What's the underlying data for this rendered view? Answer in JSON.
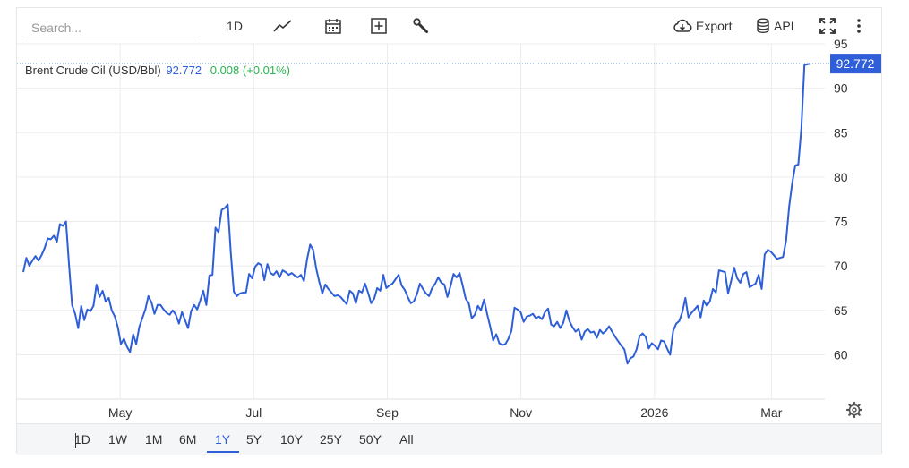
{
  "search": {
    "placeholder": "Search..."
  },
  "toolbar": {
    "interval_label": "1D",
    "export_label": "Export",
    "api_label": "API"
  },
  "header": {
    "instrument": "Brent Crude Oil (USD/Bbl)",
    "price": "92.772",
    "change": "0.008 (+0.01%)"
  },
  "ranges": [
    {
      "label": "1D",
      "active": false
    },
    {
      "label": "1W",
      "active": false
    },
    {
      "label": "1M",
      "active": false
    },
    {
      "label": "6M",
      "active": false
    },
    {
      "label": "1Y",
      "active": true
    },
    {
      "label": "5Y",
      "active": false
    },
    {
      "label": "10Y",
      "active": false
    },
    {
      "label": "25Y",
      "active": false
    },
    {
      "label": "50Y",
      "active": false
    },
    {
      "label": "All",
      "active": false
    }
  ],
  "colors": {
    "line": "#2f5fd8",
    "positive": "#2bb24c",
    "grid": "#ececec",
    "price_tag": "#2f5fd8"
  },
  "chart_data": {
    "type": "line",
    "series": [
      {
        "values": [
          69.3,
          70.9,
          70.0,
          70.6,
          71.1,
          70.6,
          71.2,
          72.0,
          73.1,
          73.0,
          73.4,
          72.7,
          74.7,
          74.5,
          75.0,
          70.1,
          65.6,
          64.6,
          63.0,
          65.5,
          63.9,
          65.1,
          64.9,
          65.5,
          67.9,
          66.5,
          67.2,
          66.0,
          66.4,
          65.0,
          64.3,
          63.1,
          61.2,
          61.8,
          60.9,
          60.3,
          62.3,
          61.2,
          63.1,
          64.1,
          65.1,
          66.6,
          65.9,
          64.6,
          65.6,
          65.6,
          65.1,
          64.7,
          64.5,
          65.0,
          64.5,
          63.5,
          64.8,
          63.9,
          63.0,
          64.9,
          65.6,
          65.1,
          66.1,
          67.2,
          65.6,
          68.9,
          69.0,
          74.3,
          73.8,
          76.3,
          76.5,
          76.9,
          71.5,
          67.1,
          66.6,
          66.9,
          67.0,
          67.0,
          69.1,
          68.6,
          69.9,
          70.3,
          70.1,
          68.4,
          70.2,
          69.2,
          69.0,
          69.4,
          68.7,
          69.5,
          69.3,
          69.0,
          69.2,
          68.9,
          68.7,
          69.0,
          68.3,
          70.7,
          72.4,
          71.8,
          69.7,
          68.2,
          66.9,
          67.9,
          67.4,
          67.0,
          66.6,
          66.7,
          66.5,
          66.1,
          65.7,
          67.2,
          66.9,
          65.8,
          67.2,
          67.0,
          68.0,
          67.0,
          65.8,
          66.3,
          67.5,
          67.2,
          69.0,
          67.5,
          67.8,
          68.0,
          68.5,
          69.0,
          67.8,
          67.3,
          66.5,
          65.8,
          66.0,
          66.8,
          68.0,
          67.4,
          66.9,
          66.6,
          67.5,
          68.0,
          68.7,
          68.1,
          67.9,
          66.5,
          67.7,
          69.1,
          68.7,
          69.2,
          67.8,
          66.3,
          65.8,
          64.1,
          64.5,
          65.5,
          65.0,
          66.2,
          64.6,
          63.2,
          61.6,
          62.3,
          61.3,
          61.1,
          61.2,
          61.8,
          62.7,
          65.3,
          65.1,
          64.8,
          63.7,
          64.3,
          64.4,
          64.6,
          64.1,
          64.3,
          64.0,
          64.8,
          65.2,
          63.4,
          63.2,
          63.7,
          63.0,
          63.6,
          65.0,
          63.8,
          63.1,
          62.6,
          62.9,
          61.7,
          62.6,
          62.9,
          62.5,
          62.6,
          61.9,
          62.8,
          62.4,
          62.7,
          63.2,
          62.6,
          62.0,
          61.5,
          61.0,
          60.6,
          59.0,
          59.6,
          59.8,
          60.6,
          62.1,
          62.4,
          62.0,
          60.7,
          61.3,
          61.0,
          60.6,
          61.6,
          61.5,
          60.7,
          60.0,
          62.7,
          63.5,
          63.8,
          64.8,
          66.4,
          64.2,
          64.7,
          65.1,
          65.5,
          64.2,
          66.1,
          65.5,
          66.0,
          67.4,
          67.0,
          69.5,
          69.4,
          69.3,
          66.9,
          68.3,
          69.8,
          68.6,
          68.1,
          69.1,
          69.3,
          67.6,
          67.8,
          68.0,
          69.0,
          67.4,
          71.3,
          71.8,
          71.6,
          71.2,
          70.8,
          70.9,
          71.0,
          72.8,
          76.7,
          79.3,
          81.3,
          81.4,
          85.5,
          92.6,
          92.7,
          92.772
        ]
      }
    ],
    "x_tick_labels": [
      "May",
      "Jul",
      "Sep",
      "Nov",
      "2026",
      "Mar"
    ],
    "y_ticks": [
      60,
      65,
      70,
      75,
      80,
      85,
      90,
      95
    ],
    "ylim": [
      55,
      95
    ],
    "last_value": "92.772",
    "grid": true
  }
}
